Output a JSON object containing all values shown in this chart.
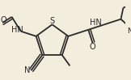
{
  "bg_color": "#f2eddc",
  "line_color": "#2a2a2a",
  "lw": 1.3,
  "lw_double": 1.1,
  "fontsize": 7.0,
  "figsize": [
    1.62,
    0.99
  ],
  "dpi": 100,
  "xlim": [
    -1.7,
    2.5
  ],
  "ylim": [
    -1.3,
    1.4
  ]
}
